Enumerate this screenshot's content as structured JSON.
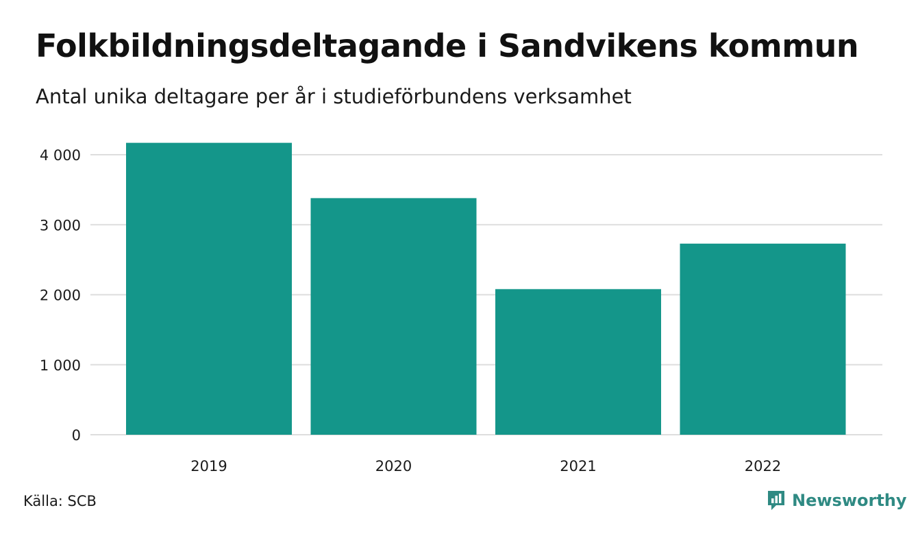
{
  "title": "Folkbildningsdeltagande i Sandvikens kommun",
  "subtitle": "Antal unika deltagare per år i studieförbundens verksamhet",
  "source": "Källa: SCB",
  "brand": {
    "name": "Newsworthy",
    "icon": "newsworthy-logo-icon",
    "color": "#2f8a83"
  },
  "chart_data": {
    "type": "bar",
    "categories": [
      "2019",
      "2020",
      "2021",
      "2022"
    ],
    "values": [
      4170,
      3380,
      2080,
      2730
    ],
    "title": "Folkbildningsdeltagande i Sandvikens kommun",
    "subtitle": "Antal unika deltagare per år i studieförbundens verksamhet",
    "xlabel": "",
    "ylabel": "",
    "ylim": [
      0,
      4000
    ],
    "yticks": [
      0,
      1000,
      2000,
      3000,
      4000
    ],
    "ytick_labels": [
      "0",
      "1 000",
      "2 000",
      "3 000",
      "4 000"
    ],
    "grid": true,
    "legend": "none",
    "bar_color": "#14968a",
    "grid_color": "#dddddd"
  }
}
